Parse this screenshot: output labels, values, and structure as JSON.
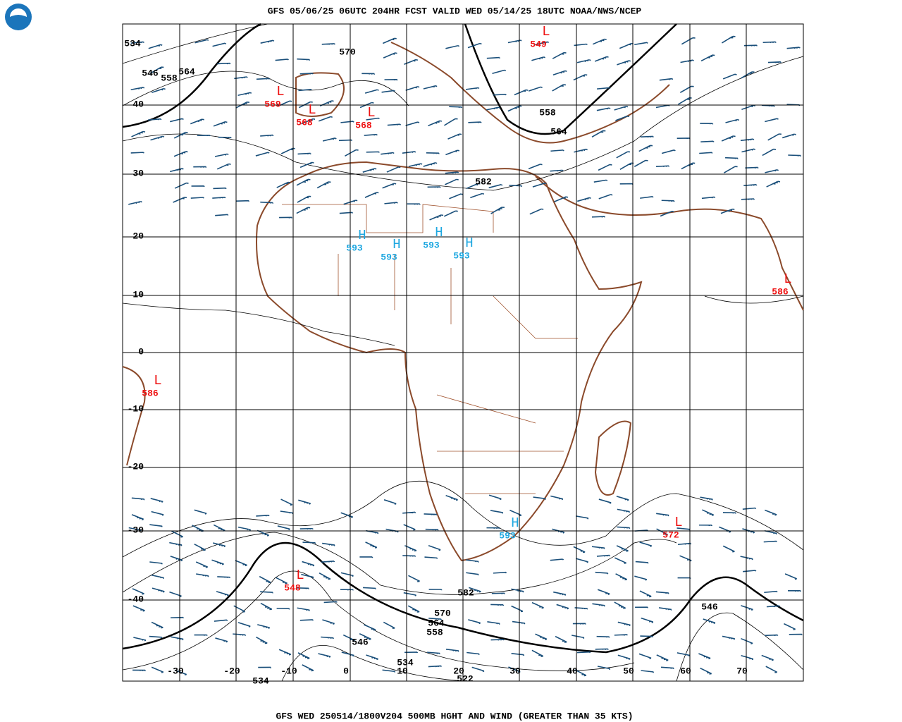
{
  "header": {
    "title": "GFS 05/06/25 06UTC 204HR FCST VALID WED 05/14/25 18UTC NOAA/NWS/NCEP"
  },
  "footer": {
    "caption": "GFS WED 250514/1800V204 500MB HGHT AND WIND (GREATER THAN 35 KTS)"
  },
  "map": {
    "lat_labels": [
      "40",
      "30",
      "20",
      "10",
      "0",
      "-10",
      "-20",
      "-30",
      "-40"
    ],
    "lon_labels": [
      "-30",
      "-20",
      "-10",
      "0",
      "10",
      "20",
      "30",
      "40",
      "50",
      "60",
      "70"
    ],
    "contour_labels": [
      "534",
      "570",
      "546",
      "558",
      "564",
      "558",
      "564",
      "582",
      "582",
      "570",
      "564",
      "558",
      "546",
      "534",
      "522",
      "546",
      "534"
    ],
    "centers": [
      {
        "kind": "L",
        "value": "549"
      },
      {
        "kind": "L",
        "value": "569"
      },
      {
        "kind": "L",
        "value": "568"
      },
      {
        "kind": "L",
        "value": "568"
      },
      {
        "kind": "L",
        "value": "586"
      },
      {
        "kind": "L",
        "value": "586"
      },
      {
        "kind": "H",
        "value": "593"
      },
      {
        "kind": "H",
        "value": "593"
      },
      {
        "kind": "H",
        "value": "593"
      },
      {
        "kind": "H",
        "value": "593"
      },
      {
        "kind": "H",
        "value": "593"
      },
      {
        "kind": "L",
        "value": "572"
      },
      {
        "kind": "L",
        "value": "548"
      }
    ]
  }
}
